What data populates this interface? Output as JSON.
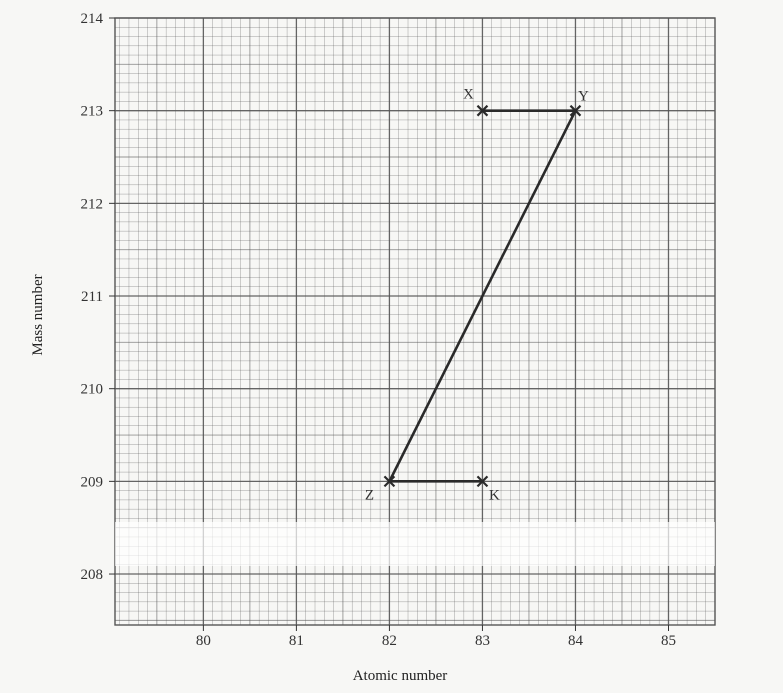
{
  "chart_data": {
    "type": "line",
    "title": "",
    "xlabel": "Atomic number",
    "ylabel": "Mass number",
    "xlim": [
      79.05,
      85.5
    ],
    "ylim": [
      207.45,
      214
    ],
    "xticks": [
      80,
      81,
      82,
      83,
      84,
      85
    ],
    "yticks": [
      208,
      209,
      210,
      211,
      212,
      213,
      214
    ],
    "grid": true,
    "points": [
      {
        "label": "X",
        "x": 83,
        "y": 213
      },
      {
        "label": "Y",
        "x": 84,
        "y": 213
      },
      {
        "label": "Z",
        "x": 82,
        "y": 209
      },
      {
        "label": "K",
        "x": 83,
        "y": 209
      }
    ],
    "segments": [
      [
        "X",
        "Y"
      ],
      [
        "Y",
        "Z"
      ],
      [
        "Z",
        "K"
      ]
    ],
    "colors": {
      "paper": "#f7f7f5",
      "grid": "#555555",
      "line": "#2a2a2a"
    }
  }
}
